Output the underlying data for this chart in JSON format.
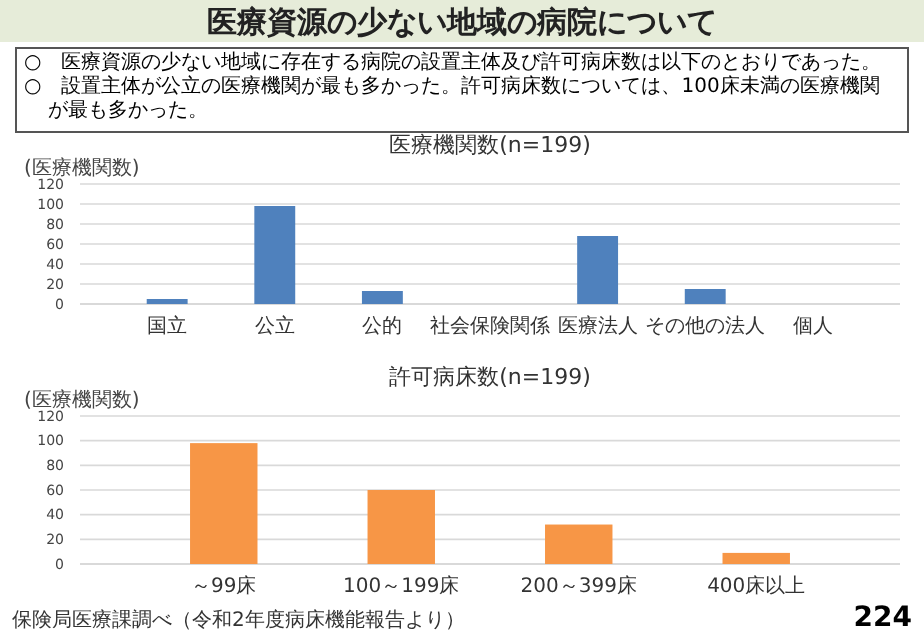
{
  "chart_data": [
    {
      "type": "bar",
      "title": "医療機関数(n=199)",
      "ylabel": "(医療機関数)",
      "categories": [
        "国立",
        "公立",
        "公的",
        "社会保険関係",
        "医療法人",
        "その他の法人",
        "個人"
      ],
      "values": [
        5,
        98,
        13,
        0,
        68,
        15,
        0
      ],
      "color": "#4f81bd",
      "ylim": [
        0,
        120
      ],
      "yticks": [
        0,
        20,
        40,
        60,
        80,
        100,
        120
      ],
      "grid": "y",
      "annotations": [
        "医療資源の少ない地域の病院について",
        "○　医療資源の少ない地域に存在する病院の設置主体及び許可病床数は以下のとおりであった。",
        "○　設置主体が公立の医療機関が最も多かった。許可病床数については、100床未満の医療機関が最も多かった。"
      ]
    },
    {
      "type": "bar",
      "title": "許可病床数(n=199)",
      "ylabel": "(医療機関数)",
      "categories": [
        "～99床",
        "100～199床",
        "200～399床",
        "400床以上"
      ],
      "values": [
        98,
        60,
        32,
        9
      ],
      "color": "#f79646",
      "ylim": [
        0,
        120
      ],
      "yticks": [
        0,
        20,
        40,
        60,
        80,
        100,
        120
      ],
      "grid": "y",
      "annotations": [
        "保険局医療課調べ（令和2年度病床機能報告より）",
        "224"
      ]
    }
  ]
}
